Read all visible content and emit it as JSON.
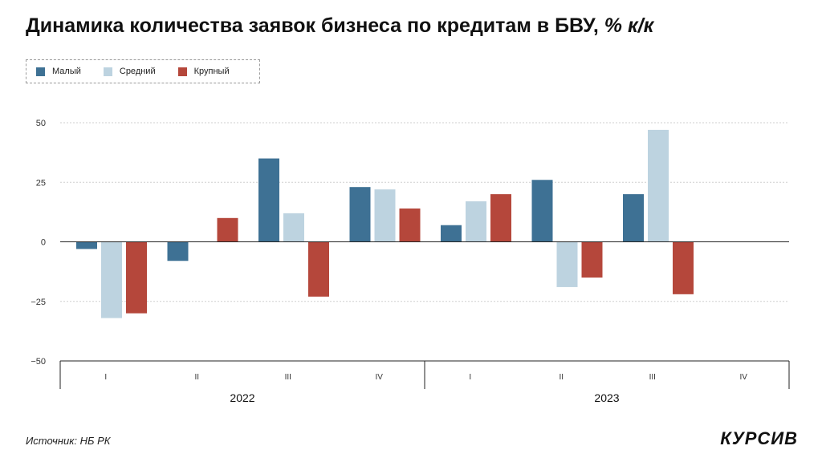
{
  "title": {
    "main": "Динамика количества заявок бизнеса по кредитам в БВУ,",
    "unit": "% к/к"
  },
  "source": "Источник: НБ РК",
  "logo": "КУРСИВ",
  "chart_data": {
    "type": "bar",
    "categories": [
      "I",
      "II",
      "III",
      "IV",
      "I",
      "II",
      "III",
      "IV"
    ],
    "groups": [
      {
        "label": "2022",
        "categories": [
          "I",
          "II",
          "III",
          "IV"
        ]
      },
      {
        "label": "2023",
        "categories": [
          "I",
          "II",
          "III",
          "IV"
        ]
      }
    ],
    "series": [
      {
        "name": "Малый",
        "color": "#3e7194",
        "values": [
          -3,
          -8,
          35,
          23,
          7,
          26,
          20,
          null
        ]
      },
      {
        "name": "Средний",
        "color": "#bdd3e0",
        "values": [
          -32,
          null,
          12,
          22,
          17,
          -19,
          47,
          null
        ]
      },
      {
        "name": "Крупный",
        "color": "#b5473b",
        "values": [
          -30,
          10,
          -23,
          14,
          20,
          -15,
          -22,
          null
        ]
      }
    ],
    "yticks": [
      50,
      25,
      0,
      -25,
      -50
    ],
    "ytick_labels": [
      "50",
      "25",
      "0",
      "−25",
      "−50"
    ],
    "ylim": [
      -50,
      50
    ],
    "legend_position": "top-left",
    "grid": true
  }
}
